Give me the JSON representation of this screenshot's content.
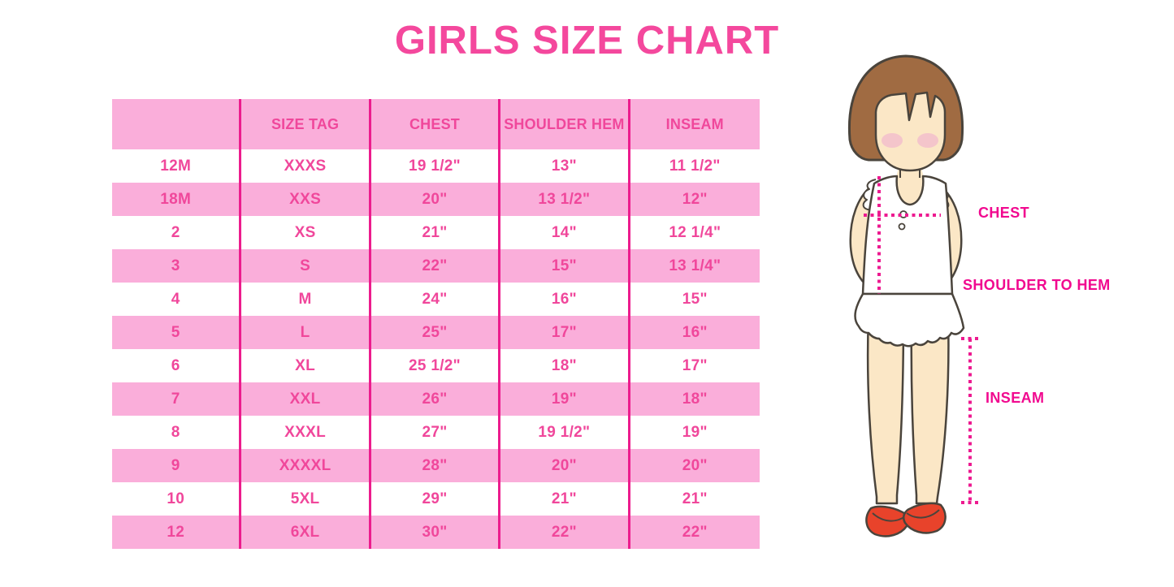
{
  "chart_data": {
    "type": "table",
    "title": "GIRLS SIZE CHART",
    "columns": [
      "",
      "SIZE TAG",
      "CHEST",
      "SHOULDER HEM",
      "INSEAM"
    ],
    "rows": [
      [
        "12M",
        "XXXS",
        "19 1/2\"",
        "13\"",
        "11 1/2\""
      ],
      [
        "18M",
        "XXS",
        "20\"",
        "13 1/2\"",
        "12\""
      ],
      [
        "2",
        "XS",
        "21\"",
        "14\"",
        "12 1/4\""
      ],
      [
        "3",
        "S",
        "22\"",
        "15\"",
        "13 1/4\""
      ],
      [
        "4",
        "M",
        "24\"",
        "16\"",
        "15\""
      ],
      [
        "5",
        "L",
        "25\"",
        "17\"",
        "16\""
      ],
      [
        "6",
        "XL",
        "25 1/2\"",
        "18\"",
        "17\""
      ],
      [
        "7",
        "XXL",
        "26\"",
        "19\"",
        "18\""
      ],
      [
        "8",
        "XXXL",
        "27\"",
        "19 1/2\"",
        "19\""
      ],
      [
        "9",
        "XXXXL",
        "28\"",
        "20\"",
        "20\""
      ],
      [
        "10",
        "5XL",
        "29\"",
        "21\"",
        "21\""
      ],
      [
        "12",
        "6XL",
        "30\"",
        "22\"",
        "22\""
      ]
    ],
    "layout": {
      "striped": true,
      "stripe_colors": [
        "#FFFFFF",
        "#FAAEDA"
      ],
      "grid": "vertical-dividers-only"
    }
  },
  "illustration": {
    "labels": {
      "chest": "CHEST",
      "shoulder_to_hem": "SHOULDER TO HEM",
      "inseam": "INSEAM"
    }
  },
  "colors": {
    "title_pink": "#F4489D",
    "table_text_pink": "#F0479B",
    "row_pink": "#FAAEDA",
    "divider_pink": "#EC1C8D",
    "label_magenta": "#F1098F",
    "dotted_line": "#ED1A90",
    "hair_brown": "#A06B42",
    "outline_dark": "#4A443C",
    "skin": "#FBE7C6",
    "blush": "#F2BECB",
    "shoe_red": "#E8432B"
  }
}
